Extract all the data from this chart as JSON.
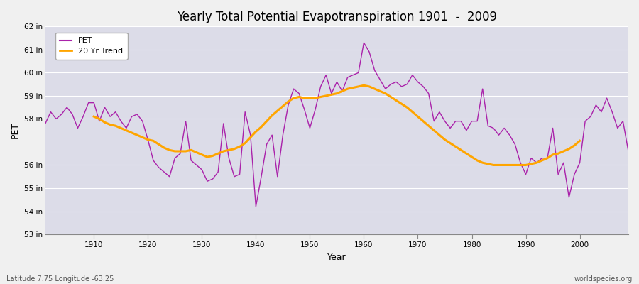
{
  "title": "Yearly Total Potential Evapotranspiration 1901  -  2009",
  "xlabel": "Year",
  "ylabel": "PET",
  "subtitle_left": "Latitude 7.75 Longitude -63.25",
  "subtitle_right": "worldspecies.org",
  "pet_color": "#AA22AA",
  "trend_color": "#FFA500",
  "background_color": "#F0F0F0",
  "plot_bg_color": "#DCDCE8",
  "grid_color": "#FFFFFF",
  "ylim": [
    53,
    62
  ],
  "yticks": [
    53,
    54,
    55,
    56,
    58,
    59,
    60,
    61,
    62
  ],
  "ytick_labels": [
    "53 in",
    "54 in",
    "55 in",
    "56 in",
    "58 in",
    "59 in",
    "60 in",
    "61 in",
    "62 in"
  ],
  "years": [
    1901,
    1902,
    1903,
    1904,
    1905,
    1906,
    1907,
    1908,
    1909,
    1910,
    1911,
    1912,
    1913,
    1914,
    1915,
    1916,
    1917,
    1918,
    1919,
    1920,
    1921,
    1922,
    1923,
    1924,
    1925,
    1926,
    1927,
    1928,
    1929,
    1930,
    1931,
    1932,
    1933,
    1934,
    1935,
    1936,
    1937,
    1938,
    1939,
    1940,
    1941,
    1942,
    1943,
    1944,
    1945,
    1946,
    1947,
    1948,
    1949,
    1950,
    1951,
    1952,
    1953,
    1954,
    1955,
    1956,
    1957,
    1958,
    1959,
    1960,
    1961,
    1962,
    1963,
    1964,
    1965,
    1966,
    1967,
    1968,
    1969,
    1970,
    1971,
    1972,
    1973,
    1974,
    1975,
    1976,
    1977,
    1978,
    1979,
    1980,
    1981,
    1982,
    1983,
    1984,
    1985,
    1986,
    1987,
    1988,
    1989,
    1990,
    1991,
    1992,
    1993,
    1994,
    1995,
    1996,
    1997,
    1998,
    1999,
    2000,
    2001,
    2002,
    2003,
    2004,
    2005,
    2006,
    2007,
    2008,
    2009
  ],
  "pet_values": [
    57.8,
    58.3,
    58.0,
    58.2,
    58.5,
    58.2,
    57.6,
    58.1,
    58.7,
    58.7,
    57.9,
    58.5,
    58.1,
    58.3,
    57.9,
    57.6,
    58.1,
    58.2,
    57.9,
    57.1,
    56.2,
    55.9,
    55.7,
    55.5,
    56.3,
    56.5,
    57.9,
    56.2,
    56.0,
    55.8,
    55.3,
    55.4,
    55.7,
    57.8,
    56.3,
    55.5,
    55.6,
    58.3,
    57.3,
    54.2,
    55.5,
    56.9,
    57.3,
    55.5,
    57.3,
    58.6,
    59.3,
    59.1,
    58.4,
    57.6,
    58.4,
    59.4,
    59.9,
    59.1,
    59.6,
    59.2,
    59.8,
    59.9,
    60.0,
    61.3,
    60.9,
    60.1,
    59.7,
    59.3,
    59.5,
    59.6,
    59.4,
    59.5,
    59.9,
    59.6,
    59.4,
    59.1,
    57.9,
    58.3,
    57.9,
    57.6,
    57.9,
    57.9,
    57.5,
    57.9,
    57.9,
    59.3,
    57.7,
    57.6,
    57.3,
    57.6,
    57.3,
    56.9,
    56.1,
    55.6,
    56.3,
    56.1,
    56.3,
    56.3,
    57.6,
    55.6,
    56.1,
    54.6,
    55.6,
    56.1,
    57.9,
    58.1,
    58.6,
    58.3,
    58.9,
    58.3,
    57.6,
    57.9,
    56.6
  ],
  "trend_years": [
    1910,
    1911,
    1912,
    1913,
    1914,
    1915,
    1916,
    1917,
    1918,
    1919,
    1920,
    1921,
    1922,
    1923,
    1924,
    1925,
    1926,
    1927,
    1928,
    1929,
    1930,
    1931,
    1932,
    1933,
    1934,
    1935,
    1936,
    1937,
    1938,
    1939,
    1940,
    1941,
    1942,
    1943,
    1944,
    1945,
    1946,
    1947,
    1948,
    1949,
    1950,
    1951,
    1952,
    1953,
    1954,
    1955,
    1956,
    1957,
    1958,
    1959,
    1960,
    1961,
    1962,
    1963,
    1964,
    1965,
    1966,
    1967,
    1968,
    1969,
    1970,
    1971,
    1972,
    1973,
    1974,
    1975,
    1976,
    1977,
    1978,
    1979,
    1980,
    1981,
    1982,
    1983,
    1984,
    1985,
    1986,
    1987,
    1988,
    1989,
    1990,
    1991,
    1992,
    1993,
    1994,
    1995,
    1996,
    1997,
    1998,
    1999,
    2000
  ],
  "trend_values": [
    58.1,
    58.0,
    57.85,
    57.75,
    57.7,
    57.6,
    57.5,
    57.4,
    57.3,
    57.2,
    57.1,
    57.05,
    56.9,
    56.75,
    56.65,
    56.6,
    56.6,
    56.6,
    56.65,
    56.55,
    56.45,
    56.35,
    56.4,
    56.5,
    56.6,
    56.65,
    56.7,
    56.8,
    56.95,
    57.2,
    57.45,
    57.65,
    57.9,
    58.15,
    58.35,
    58.55,
    58.75,
    58.9,
    58.95,
    58.9,
    58.9,
    58.9,
    58.95,
    59.0,
    59.05,
    59.1,
    59.2,
    59.3,
    59.35,
    59.4,
    59.45,
    59.4,
    59.3,
    59.2,
    59.1,
    58.95,
    58.8,
    58.65,
    58.5,
    58.3,
    58.1,
    57.9,
    57.7,
    57.5,
    57.3,
    57.1,
    56.95,
    56.8,
    56.65,
    56.5,
    56.35,
    56.2,
    56.1,
    56.05,
    56.0,
    56.0,
    56.0,
    56.0,
    56.0,
    56.0,
    56.0,
    56.05,
    56.1,
    56.2,
    56.3,
    56.45,
    56.5,
    56.6,
    56.7,
    56.85,
    57.05
  ]
}
